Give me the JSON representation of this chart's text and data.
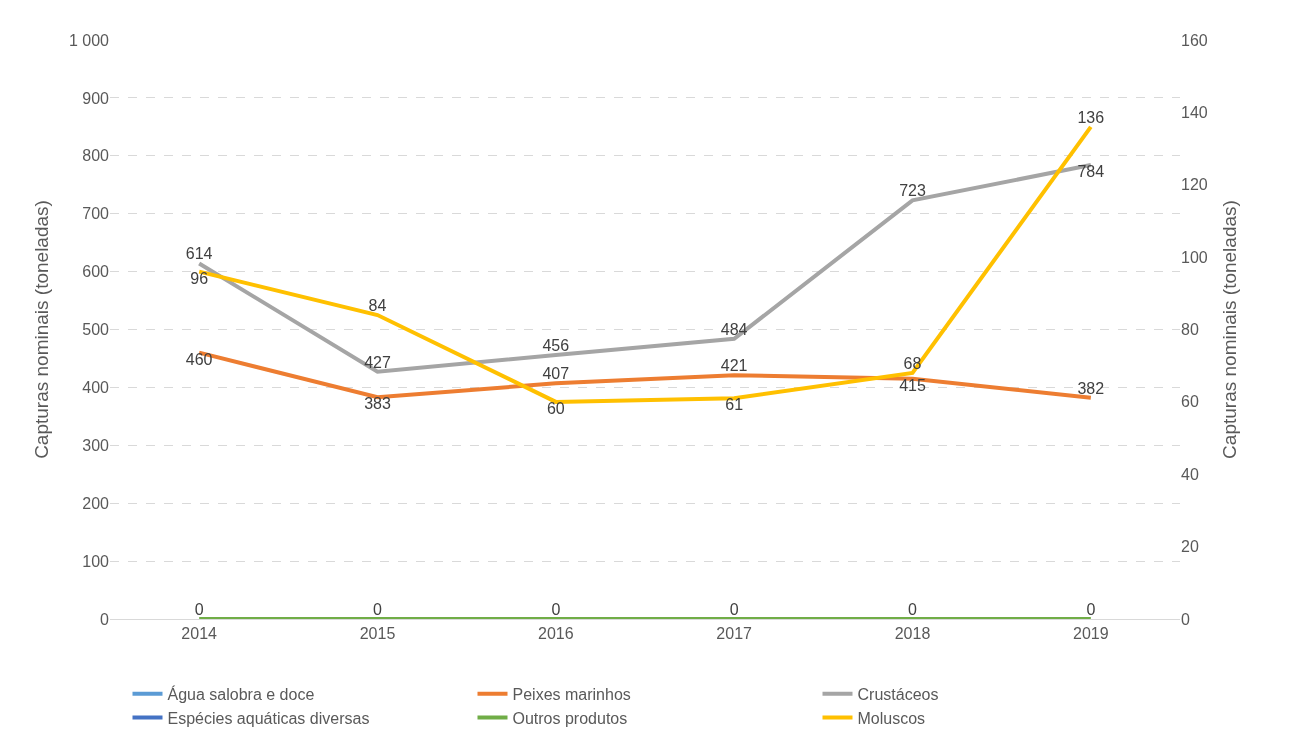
{
  "chart_data": {
    "type": "line",
    "categories": [
      "2014",
      "2015",
      "2016",
      "2017",
      "2018",
      "2019"
    ],
    "ylabel": "Capturas nominais (toneladas)",
    "y2label": "Capturas nominais (toneladas)",
    "ylim": [
      0,
      1000
    ],
    "yticks": [
      0,
      100,
      200,
      300,
      400,
      500,
      600,
      700,
      800,
      900,
      {
        "value": 1000,
        "label": "1 000"
      }
    ],
    "y2lim": [
      0,
      160
    ],
    "y2ticks": [
      0,
      20,
      40,
      60,
      80,
      100,
      120,
      140,
      160
    ],
    "grid": "y",
    "legend": "bottom",
    "marker": "none",
    "line_style": "solid",
    "series": [
      {
        "name": "Água salobra e doce",
        "color": "#5b9bd5",
        "values": [
          null,
          null,
          null,
          null,
          null,
          null
        ]
      },
      {
        "name": "Peixes marinhos",
        "color": "#ed7d31",
        "values": [
          460,
          383,
          407,
          421,
          415,
          382
        ],
        "value_labels": [
          "460",
          "383",
          "407",
          "421",
          "415",
          "382"
        ]
      },
      {
        "name": "Crustáceos",
        "color": "#a5a5a5",
        "values": [
          614,
          427,
          456,
          484,
          723,
          784
        ],
        "value_labels": [
          "614",
          "427",
          "456",
          "484",
          "723",
          "784"
        ]
      },
      {
        "name": "Espécies aquáticas diversas",
        "color": "#4472c4",
        "values": [
          null,
          null,
          null,
          null,
          null,
          null
        ]
      },
      {
        "name": "Outros produtos",
        "color": "#70ad47",
        "values": [
          0,
          0,
          0,
          0,
          0,
          0
        ],
        "value_labels": [
          "0",
          "0",
          "0",
          "0",
          "0",
          "0"
        ]
      },
      {
        "name": "Moluscos",
        "color": "#ffc000",
        "axis": "y2",
        "values": [
          96,
          84,
          60,
          61,
          68,
          136
        ],
        "value_labels": [
          "96",
          "84",
          "60",
          "61",
          "68",
          "136"
        ]
      }
    ]
  }
}
